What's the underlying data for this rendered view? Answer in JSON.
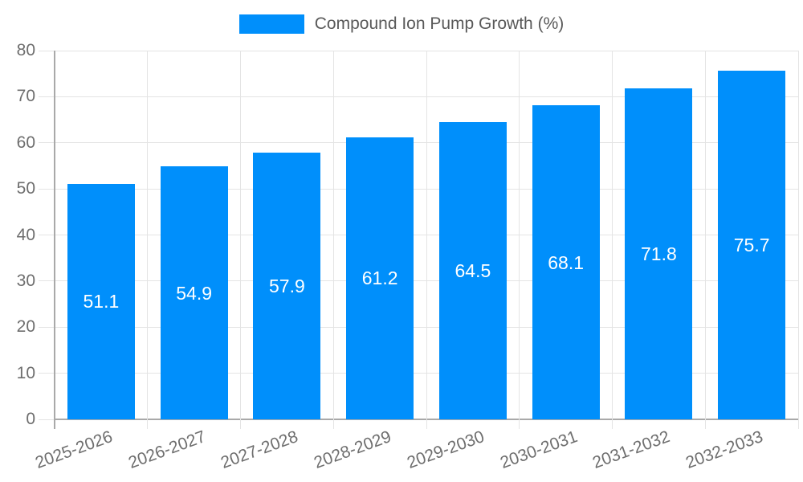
{
  "chart_data": {
    "type": "bar",
    "title": "",
    "legend": {
      "label": "Compound Ion Pump Growth (%)",
      "position": "top"
    },
    "categories": [
      "2025-2026",
      "2026-2027",
      "2027-2028",
      "2028-2029",
      "2029-2030",
      "2030-2031",
      "2031-2032",
      "2032-2033"
    ],
    "values": [
      51.1,
      54.9,
      57.9,
      61.2,
      64.5,
      68.1,
      71.8,
      75.7
    ],
    "series": [
      {
        "name": "Compound Ion Pump Growth (%)",
        "values": [
          51.1,
          54.9,
          57.9,
          61.2,
          64.5,
          68.1,
          71.8,
          75.7
        ]
      }
    ],
    "value_labels": [
      "51.1",
      "54.9",
      "57.9",
      "61.2",
      "64.5",
      "68.1",
      "71.8",
      "75.7"
    ],
    "xlabel": "",
    "ylabel": "",
    "ylim": [
      0,
      80
    ],
    "yticks": [
      0,
      10,
      20,
      30,
      40,
      50,
      60,
      70,
      80
    ],
    "ytick_labels": [
      "0",
      "10",
      "20",
      "30",
      "40",
      "50",
      "60",
      "70",
      "80"
    ],
    "grid": true,
    "grid_vertical": true,
    "colors": {
      "bar": "#008ffb",
      "grid": "#e4e4e4",
      "axis": "#a9a9a9",
      "tick_text": "#6e6e6e",
      "legend_text": "#595959",
      "value_label": "#ffffff",
      "background": "#ffffff"
    }
  }
}
